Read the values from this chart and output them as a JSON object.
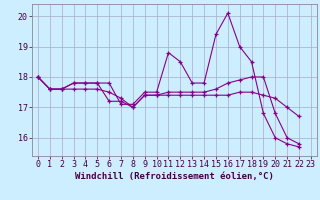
{
  "xlabel": "Windchill (Refroidissement éolien,°C)",
  "background_color": "#cceeff",
  "grid_color": "#aaaacc",
  "line_color": "#880088",
  "xlim": [
    -0.5,
    23.5
  ],
  "ylim": [
    15.4,
    20.4
  ],
  "yticks": [
    16,
    17,
    18,
    19,
    20
  ],
  "xticks": [
    0,
    1,
    2,
    3,
    4,
    5,
    6,
    7,
    8,
    9,
    10,
    11,
    12,
    13,
    14,
    15,
    16,
    17,
    18,
    19,
    20,
    21,
    22,
    23
  ],
  "series": [
    {
      "x": [
        0,
        1,
        2,
        3,
        4,
        5,
        6,
        7,
        8,
        9,
        10,
        11,
        12,
        13,
        14,
        15,
        16,
        17,
        18,
        19,
        20,
        21,
        22
      ],
      "y": [
        18.0,
        17.6,
        17.6,
        17.8,
        17.8,
        17.8,
        17.8,
        17.1,
        17.1,
        17.5,
        17.5,
        18.8,
        18.5,
        17.8,
        17.8,
        19.4,
        20.1,
        19.0,
        18.5,
        16.8,
        16.0,
        15.8,
        15.7
      ]
    },
    {
      "x": [
        0,
        1,
        2,
        3,
        4,
        5,
        6,
        7,
        8,
        9,
        10,
        11,
        12,
        13,
        14,
        15,
        16,
        17,
        18,
        19,
        20,
        21,
        22
      ],
      "y": [
        18.0,
        17.6,
        17.6,
        17.8,
        17.8,
        17.8,
        17.2,
        17.2,
        17.0,
        17.4,
        17.4,
        17.5,
        17.5,
        17.5,
        17.5,
        17.6,
        17.8,
        17.9,
        18.0,
        18.0,
        16.8,
        16.0,
        15.8
      ]
    },
    {
      "x": [
        0,
        1,
        2,
        3,
        4,
        5,
        6,
        7,
        8,
        9,
        10,
        11,
        12,
        13,
        14,
        15,
        16,
        17,
        18,
        19,
        20,
        21,
        22
      ],
      "y": [
        18.0,
        17.6,
        17.6,
        17.6,
        17.6,
        17.6,
        17.5,
        17.3,
        17.0,
        17.4,
        17.4,
        17.4,
        17.4,
        17.4,
        17.4,
        17.4,
        17.4,
        17.5,
        17.5,
        17.4,
        17.3,
        17.0,
        16.7
      ]
    }
  ],
  "xlabel_fontsize": 6.5,
  "tick_fontsize": 6.0
}
